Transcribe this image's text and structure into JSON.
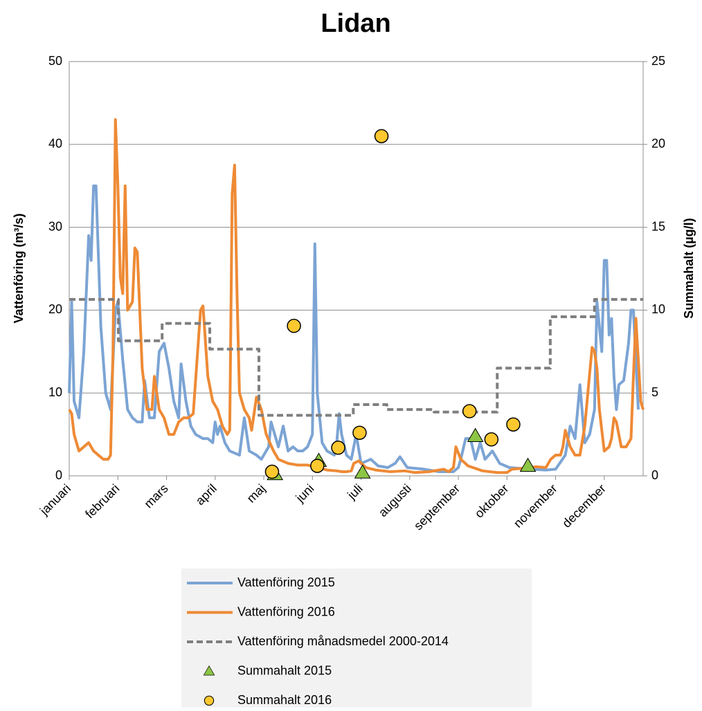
{
  "chart_data": {
    "type": "line",
    "title": "Lidan",
    "y_label": "Vattenföring (m³/s)",
    "y2_label": "Summahalt (µg/l)",
    "xlim": [
      0,
      11.8
    ],
    "xticks": [
      {
        "value": 0,
        "label": "januari"
      },
      {
        "value": 1,
        "label": "februari"
      },
      {
        "value": 2,
        "label": "mars"
      },
      {
        "value": 3,
        "label": "april"
      },
      {
        "value": 4,
        "label": "maj"
      },
      {
        "value": 5,
        "label": "juni"
      },
      {
        "value": 6,
        "label": "juli"
      },
      {
        "value": 7,
        "label": "augusti"
      },
      {
        "value": 8,
        "label": "september"
      },
      {
        "value": 9,
        "label": "oktober"
      },
      {
        "value": 10,
        "label": "november"
      },
      {
        "value": 11,
        "label": "december"
      }
    ],
    "ylim": [
      0,
      50
    ],
    "yticks": [
      0,
      10,
      20,
      30,
      40,
      50
    ],
    "y2lim": [
      0,
      25
    ],
    "y2ticks": [
      0,
      5,
      10,
      15,
      20,
      25
    ],
    "grid": true,
    "series": [
      {
        "name": "Vattenföring 2015",
        "color": "#7ca4d4",
        "style": "solid",
        "x": [
          0,
          0.05,
          0.1,
          0.15,
          0.2,
          0.3,
          0.4,
          0.45,
          0.5,
          0.55,
          0.65,
          0.75,
          0.85,
          0.95,
          1.0,
          1.1,
          1.2,
          1.3,
          1.4,
          1.5,
          1.55,
          1.65,
          1.75,
          1.85,
          1.95,
          2.05,
          2.15,
          2.25,
          2.3,
          2.4,
          2.5,
          2.6,
          2.75,
          2.85,
          2.95,
          3.0,
          3.05,
          3.1,
          3.2,
          3.3,
          3.5,
          3.6,
          3.7,
          3.85,
          3.95,
          4.0,
          4.1,
          4.15,
          4.3,
          4.4,
          4.5,
          4.6,
          4.7,
          4.8,
          4.9,
          5.0,
          5.05,
          5.1,
          5.2,
          5.3,
          5.45,
          5.5,
          5.55,
          5.6,
          5.7,
          5.8,
          5.9,
          6.0,
          6.2,
          6.35,
          6.55,
          6.7,
          6.8,
          6.95,
          7.3,
          7.6,
          7.9,
          8.0,
          8.05,
          8.15,
          8.25,
          8.35,
          8.45,
          8.55,
          8.7,
          8.85,
          9.05,
          9.5,
          9.8,
          10.0,
          10.2,
          10.3,
          10.4,
          10.5,
          10.6,
          10.7,
          10.8,
          10.85,
          10.95,
          11.0,
          11.05,
          11.1,
          11.15,
          11.2,
          11.25,
          11.3,
          11.4,
          11.5,
          11.55,
          11.6,
          11.7
        ],
        "values": [
          10,
          21,
          9,
          8,
          7,
          15,
          29,
          26,
          35,
          35,
          18,
          10,
          8,
          20,
          21,
          14,
          8,
          7,
          6.5,
          6.5,
          11.5,
          7,
          7,
          15,
          16,
          13,
          9,
          7,
          13.5,
          9,
          6,
          5,
          4.5,
          4.5,
          4,
          6.5,
          5,
          6,
          4,
          3,
          2.5,
          7,
          3,
          2.5,
          2,
          2.5,
          3.5,
          6.5,
          3.5,
          6,
          3,
          3.5,
          3,
          3,
          3.5,
          5,
          28,
          10,
          4,
          3,
          2.5,
          4,
          7.5,
          5,
          2.5,
          2,
          5,
          1.5,
          2,
          1.2,
          1.0,
          1.5,
          2.3,
          1,
          0.8,
          0.5,
          0.5,
          1,
          2,
          4.5,
          4.5,
          2,
          4,
          2,
          3,
          1.5,
          1,
          0.8,
          0.7,
          0.8,
          2.5,
          6,
          4.5,
          11,
          4,
          5,
          8,
          21,
          15,
          26,
          26,
          17,
          19,
          12,
          8,
          11,
          11.5,
          16,
          20,
          20,
          8
        ]
      },
      {
        "name": "Vattenföring 2016",
        "color": "#ee8a35",
        "style": "solid",
        "x": [
          0,
          0.05,
          0.1,
          0.2,
          0.3,
          0.4,
          0.5,
          0.6,
          0.7,
          0.8,
          0.85,
          0.9,
          0.95,
          1.0,
          1.05,
          1.1,
          1.15,
          1.2,
          1.3,
          1.35,
          1.4,
          1.5,
          1.6,
          1.7,
          1.75,
          1.85,
          1.95,
          2.05,
          2.15,
          2.25,
          2.35,
          2.45,
          2.55,
          2.7,
          2.75,
          2.85,
          2.95,
          3.05,
          3.15,
          3.25,
          3.3,
          3.35,
          3.4,
          3.45,
          3.5,
          3.6,
          3.7,
          3.75,
          3.85,
          3.95,
          4.05,
          4.2,
          4.3,
          4.5,
          4.7,
          4.9,
          5.1,
          5.3,
          5.5,
          5.6,
          5.7,
          5.8,
          5.85,
          5.95,
          6.1,
          6.3,
          6.6,
          6.9,
          7.1,
          7.4,
          7.7,
          7.8,
          7.9,
          7.95,
          8.05,
          8.2,
          8.5,
          8.8,
          9.0,
          9.1,
          9.3,
          9.6,
          9.8,
          9.9,
          10.0,
          10.1,
          10.15,
          10.2,
          10.3,
          10.4,
          10.5,
          10.6,
          10.75,
          10.8,
          10.85,
          10.9,
          11.0,
          11.1,
          11.15,
          11.2,
          11.25,
          11.35,
          11.45,
          11.55,
          11.6,
          11.65,
          11.75,
          11.8
        ],
        "values": [
          8,
          7.5,
          5,
          3,
          3.5,
          4,
          3,
          2.5,
          2,
          2,
          2.5,
          15,
          43,
          35,
          24,
          22,
          35,
          20,
          21,
          27.5,
          27,
          13,
          8,
          8,
          12,
          8,
          7,
          5,
          5,
          6.5,
          7,
          7,
          7.5,
          20,
          20.5,
          12,
          9,
          8,
          6,
          5,
          5.5,
          34,
          37.5,
          22,
          10,
          8,
          7,
          5.5,
          9.5,
          8,
          5,
          3,
          2,
          1.5,
          1.3,
          1.3,
          1.0,
          0.7,
          0.6,
          0.5,
          0.5,
          0.6,
          1.5,
          1.8,
          1,
          0.7,
          0.5,
          0.6,
          0.4,
          0.5,
          0.8,
          0.5,
          1,
          3.5,
          2,
          1.2,
          0.6,
          0.4,
          0.4,
          0.8,
          0.9,
          1.1,
          1.0,
          2,
          2.5,
          2.5,
          3.5,
          5.5,
          3.5,
          2.5,
          2.5,
          6,
          15.5,
          15,
          13,
          8,
          3,
          3.5,
          4.5,
          7,
          6.5,
          3.5,
          3.5,
          4.5,
          12,
          19,
          9,
          8
        ]
      },
      {
        "name": "Vattenföring månadsmedel 2000-2014",
        "color": "#7f7f7f",
        "style": "dashed",
        "x": [
          0,
          1.01,
          1.01,
          1.91,
          1.91,
          2.89,
          2.89,
          3.9,
          3.9,
          5.84,
          5.84,
          6.53,
          6.53,
          7.5,
          7.5,
          8.8,
          8.8,
          9.89,
          9.89,
          10.8,
          10.8,
          11.8
        ],
        "values": [
          21.3,
          21.3,
          16.3,
          16.3,
          18.4,
          18.4,
          15.3,
          15.3,
          7.3,
          7.3,
          8.6,
          8.6,
          8.0,
          8.0,
          7.7,
          7.7,
          13.0,
          13.0,
          19.2,
          19.2,
          21.3,
          21.3
        ]
      },
      {
        "name": "Summahalt 2015",
        "color": "#8dc544",
        "style": "marker",
        "marker": "triangle",
        "axis": "y2",
        "x": [
          4.23,
          5.13,
          6.03,
          8.35,
          9.43
        ],
        "values": [
          0.1,
          0.9,
          0.2,
          2.4,
          0.6
        ]
      },
      {
        "name": "Summahalt 2016",
        "color": "#fdc82f",
        "style": "marker",
        "marker": "circle",
        "axis": "y2",
        "x": [
          4.17,
          4.62,
          5.1,
          5.53,
          5.97,
          6.42,
          8.23,
          8.68,
          9.13
        ],
        "values": [
          0.25,
          9.05,
          0.6,
          1.7,
          2.6,
          20.5,
          3.9,
          2.2,
          3.1
        ]
      }
    ]
  }
}
